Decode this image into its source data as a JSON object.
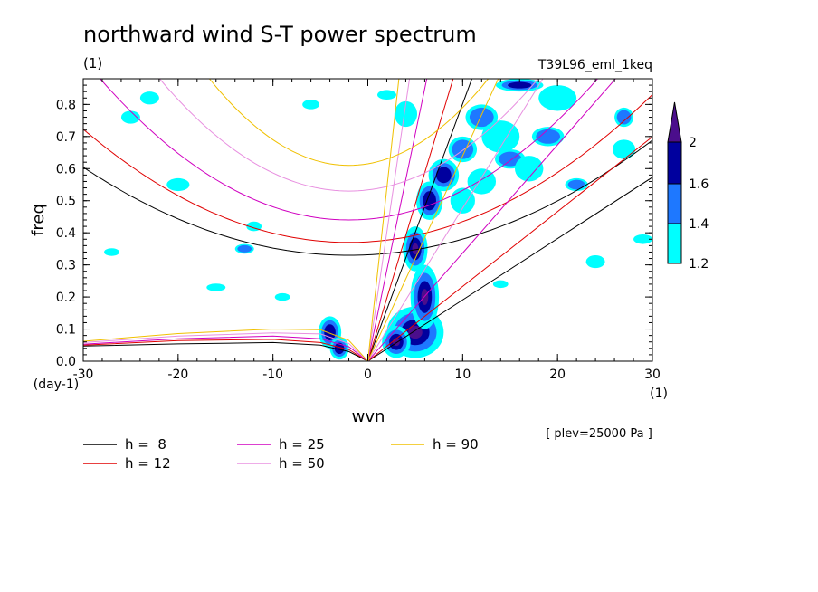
{
  "chart_data": {
    "type": "contour",
    "title": "northward wind S-T power spectrum",
    "subtitle": "(1)",
    "experiment": "T39L96_eml_1keq",
    "xlabel": "wvn",
    "ylabel": "freq",
    "x_unit": "(1)",
    "y_unit": "(day-1)",
    "level_note": "[ plev=25000 Pa ]",
    "xlim": [
      -30,
      30
    ],
    "ylim": [
      0,
      0.88
    ],
    "x_ticks": [
      -30,
      -20,
      -10,
      0,
      10,
      20,
      30
    ],
    "x_tick_labels": [
      "-30",
      "-20",
      "-10",
      "0",
      "10",
      "20",
      "30"
    ],
    "y_ticks": [
      0.0,
      0.1,
      0.2,
      0.3,
      0.4,
      0.5,
      0.6,
      0.7,
      0.8
    ],
    "y_tick_labels": [
      "0.0",
      "0.1",
      "0.2",
      "0.3",
      "0.4",
      "0.5",
      "0.6",
      "0.7",
      "0.8"
    ],
    "colorbar": {
      "levels": [
        1.2,
        1.4,
        1.6,
        2
      ],
      "labels": [
        "1.2",
        "1.4",
        "1.6",
        "2"
      ],
      "colors": [
        "#00ffff",
        "#1e78ff",
        "#00009e",
        "#4b0e8c"
      ]
    },
    "dispersion_curves": [
      {
        "label": "h =  8",
        "color": "#000000"
      },
      {
        "label": "h = 12",
        "color": "#e00000"
      },
      {
        "label": "h = 25",
        "color": "#d000c0"
      },
      {
        "label": "h = 50",
        "color": "#e890e0"
      },
      {
        "label": "h = 90",
        "color": "#f0c000"
      }
    ],
    "curve_fits": {
      "equatorial_rossby_gravity": {
        "8": [
          [
            -30,
            0.047
          ],
          [
            -20,
            0.054
          ],
          [
            -10,
            0.058
          ],
          [
            -5,
            0.05
          ],
          [
            -2,
            0.03
          ],
          [
            0,
            0
          ]
        ],
        "12": [
          [
            -30,
            0.05
          ],
          [
            -20,
            0.064
          ],
          [
            -10,
            0.068
          ],
          [
            -5,
            0.058
          ],
          [
            -2,
            0.036
          ],
          [
            0,
            0
          ]
        ],
        "25": [
          [
            -30,
            0.053
          ],
          [
            -20,
            0.07
          ],
          [
            -10,
            0.078
          ],
          [
            -5,
            0.07
          ],
          [
            -2,
            0.045
          ],
          [
            0,
            0
          ]
        ],
        "50": [
          [
            -30,
            0.058
          ],
          [
            -20,
            0.078
          ],
          [
            -10,
            0.088
          ],
          [
            -5,
            0.085
          ],
          [
            -2,
            0.055
          ],
          [
            0,
            0
          ]
        ],
        "90": [
          [
            -30,
            0.062
          ],
          [
            -20,
            0.086
          ],
          [
            -10,
            0.1
          ],
          [
            -5,
            0.098
          ],
          [
            -2,
            0.065
          ],
          [
            0,
            0
          ]
        ]
      },
      "inertia_gravity_min": {
        "8": {
          "x0": -2,
          "y0": 0.33,
          "k": 0.00035
        },
        "12": {
          "x0": -2,
          "y0": 0.37,
          "k": 0.00045
        },
        "25": {
          "x0": -2,
          "y0": 0.44,
          "k": 0.00064
        },
        "50": {
          "x0": -2,
          "y0": 0.53,
          "k": 0.00088
        },
        "90": {
          "x0": -2,
          "y0": 0.61,
          "k": 0.00125
        }
      },
      "kelvin_slopes": {
        "8": 0.0191,
        "12": 0.0233,
        "25": 0.0337,
        "50": 0.0477,
        "90": 0.064
      }
    },
    "blobs": [
      {
        "x": 5,
        "y": 0.09,
        "rx": 3,
        "ry": 0.08,
        "level": 3
      },
      {
        "x": 6,
        "y": 0.2,
        "rx": 1.5,
        "ry": 0.1,
        "level": 3
      },
      {
        "x": 5,
        "y": 0.35,
        "rx": 1.3,
        "ry": 0.07,
        "level": 3
      },
      {
        "x": 6.5,
        "y": 0.5,
        "rx": 1.4,
        "ry": 0.06,
        "level": 2
      },
      {
        "x": 3,
        "y": 0.06,
        "rx": 1.5,
        "ry": 0.05,
        "level": 3
      },
      {
        "x": -4,
        "y": 0.09,
        "rx": 1.2,
        "ry": 0.05,
        "level": 2
      },
      {
        "x": -3,
        "y": 0.04,
        "rx": 1.0,
        "ry": 0.035,
        "level": 2
      },
      {
        "x": 8,
        "y": 0.58,
        "rx": 1.6,
        "ry": 0.05,
        "level": 2
      },
      {
        "x": 10,
        "y": 0.66,
        "rx": 1.5,
        "ry": 0.04,
        "level": 1
      },
      {
        "x": 12,
        "y": 0.76,
        "rx": 1.7,
        "ry": 0.04,
        "level": 1
      },
      {
        "x": 15,
        "y": 0.63,
        "rx": 1.6,
        "ry": 0.03,
        "level": 1
      },
      {
        "x": 19,
        "y": 0.7,
        "rx": 1.7,
        "ry": 0.03,
        "level": 1
      },
      {
        "x": 22,
        "y": 0.55,
        "rx": 1.2,
        "ry": 0.02,
        "level": 1
      },
      {
        "x": 27,
        "y": 0.76,
        "rx": 1.0,
        "ry": 0.03,
        "level": 1
      },
      {
        "x": -13,
        "y": 0.35,
        "rx": 1.0,
        "ry": 0.015,
        "level": 1
      },
      {
        "x": -23,
        "y": 0.82,
        "rx": 1.0,
        "ry": 0.02,
        "level": 0
      },
      {
        "x": 16,
        "y": 0.86,
        "rx": 2.5,
        "ry": 0.02,
        "level": 2
      },
      {
        "x": 24,
        "y": 0.31,
        "rx": 1.0,
        "ry": 0.02,
        "level": 0
      },
      {
        "x": -16,
        "y": 0.23,
        "rx": 1.0,
        "ry": 0.012,
        "level": 0
      },
      {
        "x": 10,
        "y": 0.5,
        "rx": 1.3,
        "ry": 0.04,
        "level": 0
      },
      {
        "x": 12,
        "y": 0.56,
        "rx": 1.5,
        "ry": 0.04,
        "level": 0
      },
      {
        "x": 17,
        "y": 0.6,
        "rx": 1.5,
        "ry": 0.04,
        "level": 0
      },
      {
        "x": 14,
        "y": 0.7,
        "rx": 2,
        "ry": 0.05,
        "level": 0
      },
      {
        "x": 20,
        "y": 0.82,
        "rx": 2,
        "ry": 0.04,
        "level": 0
      },
      {
        "x": 27,
        "y": 0.66,
        "rx": 1.2,
        "ry": 0.03,
        "level": 0
      },
      {
        "x": -25,
        "y": 0.76,
        "rx": 1,
        "ry": 0.02,
        "level": 0
      },
      {
        "x": -6,
        "y": 0.8,
        "rx": 0.9,
        "ry": 0.015,
        "level": 0
      },
      {
        "x": -20,
        "y": 0.55,
        "rx": 1.2,
        "ry": 0.02,
        "level": 0
      },
      {
        "x": -12,
        "y": 0.42,
        "rx": 0.8,
        "ry": 0.015,
        "level": 0
      },
      {
        "x": 4,
        "y": 0.77,
        "rx": 1.2,
        "ry": 0.04,
        "level": 0
      },
      {
        "x": 29,
        "y": 0.38,
        "rx": 1.0,
        "ry": 0.015,
        "level": 0
      },
      {
        "x": 2,
        "y": 0.83,
        "rx": 1,
        "ry": 0.015,
        "level": 0
      },
      {
        "x": -27,
        "y": 0.34,
        "rx": 0.8,
        "ry": 0.012,
        "level": 0
      },
      {
        "x": -9,
        "y": 0.2,
        "rx": 0.8,
        "ry": 0.012,
        "level": 0
      },
      {
        "x": 14,
        "y": 0.24,
        "rx": 0.8,
        "ry": 0.012,
        "level": 0
      }
    ]
  }
}
